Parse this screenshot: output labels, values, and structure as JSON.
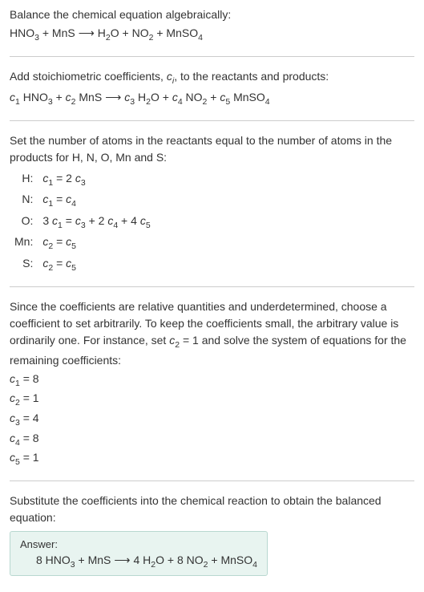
{
  "intro": {
    "line1": "Balance the chemical equation algebraically:",
    "eq_parts": [
      "HNO",
      "3",
      " + MnS",
      " ⟶ ",
      "H",
      "2",
      "O + NO",
      "2",
      " + MnSO",
      "4"
    ]
  },
  "step1": {
    "text_parts": [
      "Add stoichiometric coefficients, ",
      "c",
      "i",
      ", to the reactants and products:"
    ],
    "eq_parts": [
      "c",
      "1",
      " HNO",
      "3",
      " + ",
      "c",
      "2",
      " MnS",
      " ⟶ ",
      "c",
      "3",
      " H",
      "2",
      "O + ",
      "c",
      "4",
      " NO",
      "2",
      " + ",
      "c",
      "5",
      " MnSO",
      "4"
    ]
  },
  "step2": {
    "text": "Set the number of atoms in the reactants equal to the number of atoms in the products for H, N, O, Mn and S:",
    "rows": [
      {
        "label": "H:",
        "eq_parts": [
          "c",
          "1",
          " = 2 ",
          "c",
          "3"
        ]
      },
      {
        "label": "N:",
        "eq_parts": [
          "c",
          "1",
          " = ",
          "c",
          "4"
        ]
      },
      {
        "label": "O:",
        "eq_parts": [
          "3 ",
          "c",
          "1",
          " = ",
          "c",
          "3",
          " + 2 ",
          "c",
          "4",
          " + 4 ",
          "c",
          "5"
        ]
      },
      {
        "label": "Mn:",
        "eq_parts": [
          "c",
          "2",
          " = ",
          "c",
          "5"
        ]
      },
      {
        "label": "S:",
        "eq_parts": [
          "c",
          "2",
          " = ",
          "c",
          "5"
        ]
      }
    ]
  },
  "step3": {
    "text_parts": [
      "Since the coefficients are relative quantities and underdetermined, choose a coefficient to set arbitrarily. To keep the coefficients small, the arbitrary value is ordinarily one. For instance, set ",
      "c",
      "2",
      " = 1 and solve the system of equations for the remaining coefficients:"
    ],
    "coeffs": [
      {
        "parts": [
          "c",
          "1",
          " = 8"
        ]
      },
      {
        "parts": [
          "c",
          "2",
          " = 1"
        ]
      },
      {
        "parts": [
          "c",
          "3",
          " = 4"
        ]
      },
      {
        "parts": [
          "c",
          "4",
          " = 8"
        ]
      },
      {
        "parts": [
          "c",
          "5",
          " = 1"
        ]
      }
    ]
  },
  "step4": {
    "text": "Substitute the coefficients into the chemical reaction to obtain the balanced equation:"
  },
  "answer": {
    "label": "Answer:",
    "eq_parts": [
      "8 HNO",
      "3",
      " + MnS",
      " ⟶ ",
      "4 H",
      "2",
      "O + 8 NO",
      "2",
      " + MnSO",
      "4"
    ]
  },
  "colors": {
    "text": "#333333",
    "hr": "#cccccc",
    "answer_bg": "#e8f4f0",
    "answer_border": "#b8d8d0"
  }
}
